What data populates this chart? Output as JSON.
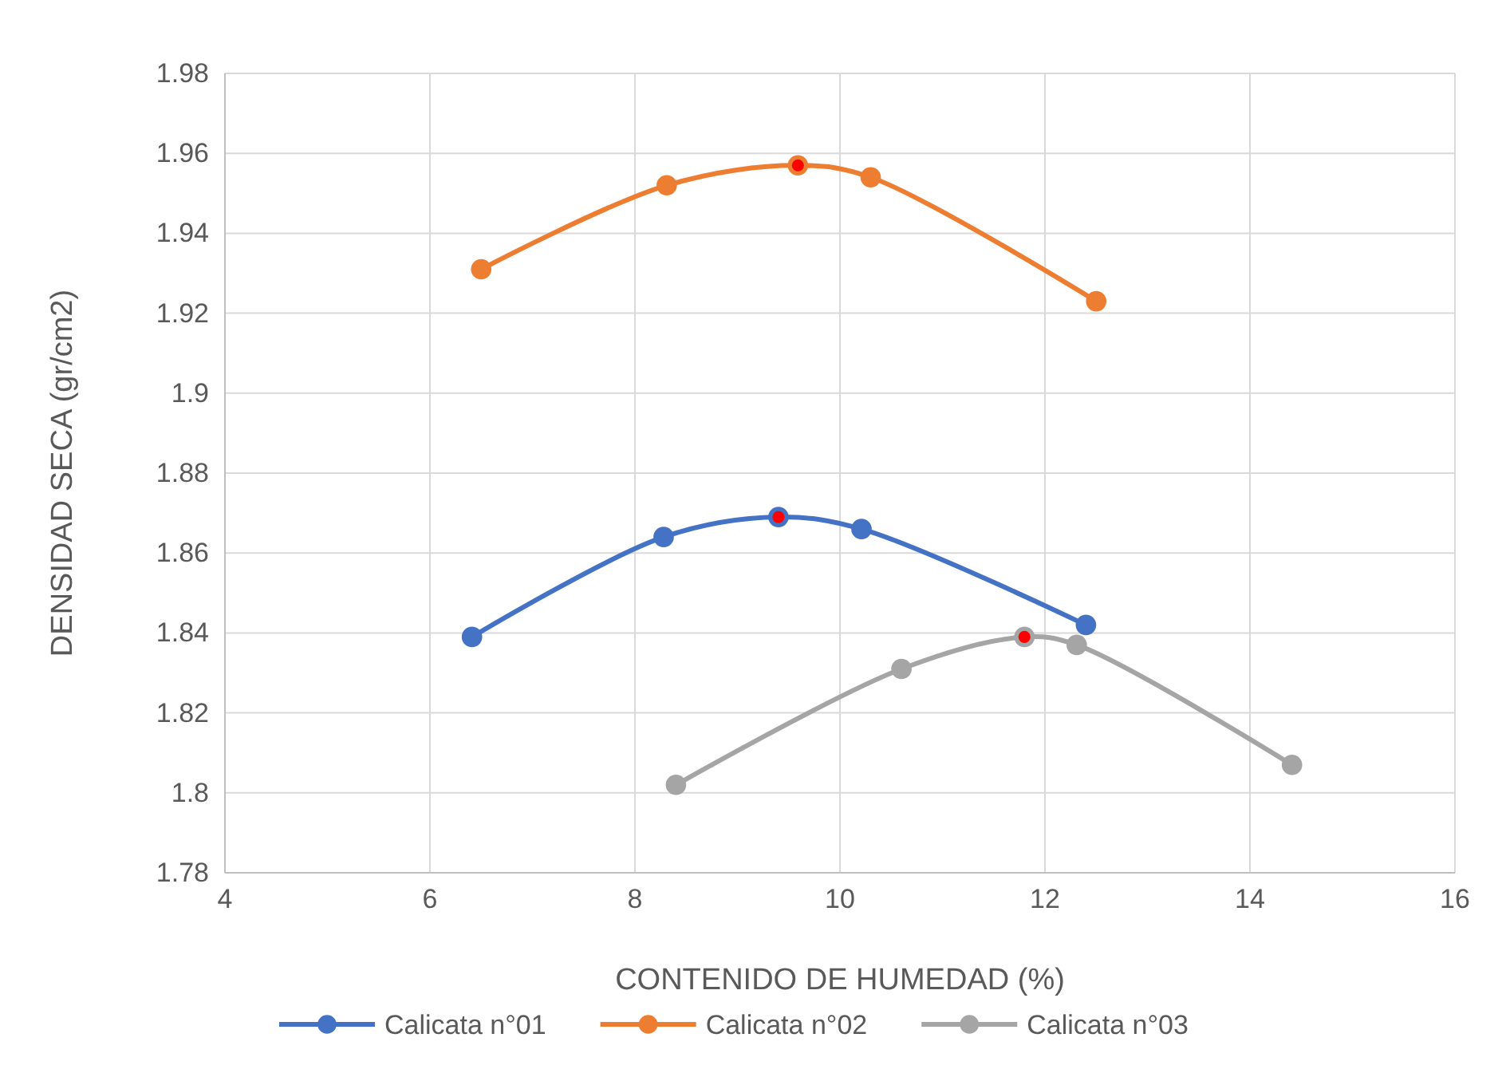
{
  "chart_data": {
    "type": "line",
    "xlabel": "CONTENIDO DE HUMEDAD (%)",
    "ylabel": "DENSIDAD SECA (gr/cm2)",
    "xlim": [
      4,
      16
    ],
    "xticks": [
      4,
      6,
      8,
      10,
      12,
      14,
      16
    ],
    "ylim": [
      1.78,
      1.98
    ],
    "yticks": [
      1.78,
      1.8,
      1.82,
      1.84,
      1.86,
      1.88,
      1.9,
      1.92,
      1.94,
      1.96,
      1.98
    ],
    "grid": true,
    "legend": "bottom",
    "marker": "circle",
    "line_style": "solid",
    "series": [
      {
        "name": "Calicata n°01",
        "color": "#4472c4",
        "x": [
          6.41,
          8.28,
          9.4,
          10.21,
          12.4
        ],
        "values": [
          1.839,
          1.864,
          1.869,
          1.866,
          1.842
        ]
      },
      {
        "name": "Calicata n°02",
        "color": "#ed7d31",
        "x": [
          6.5,
          8.31,
          9.59,
          10.3,
          12.5
        ],
        "values": [
          1.931,
          1.952,
          1.957,
          1.954,
          1.923
        ]
      },
      {
        "name": "Calicata n°03",
        "color": "#a5a5a5",
        "x": [
          8.4,
          10.6,
          11.8,
          12.31,
          14.41
        ],
        "values": [
          1.802,
          1.831,
          1.839,
          1.837,
          1.807
        ]
      },
      {
        "type": "scatter",
        "color": "#ff0000",
        "x": [
          9.4,
          9.59,
          11.8
        ],
        "values": [
          1.869,
          1.957,
          1.839
        ]
      }
    ]
  }
}
